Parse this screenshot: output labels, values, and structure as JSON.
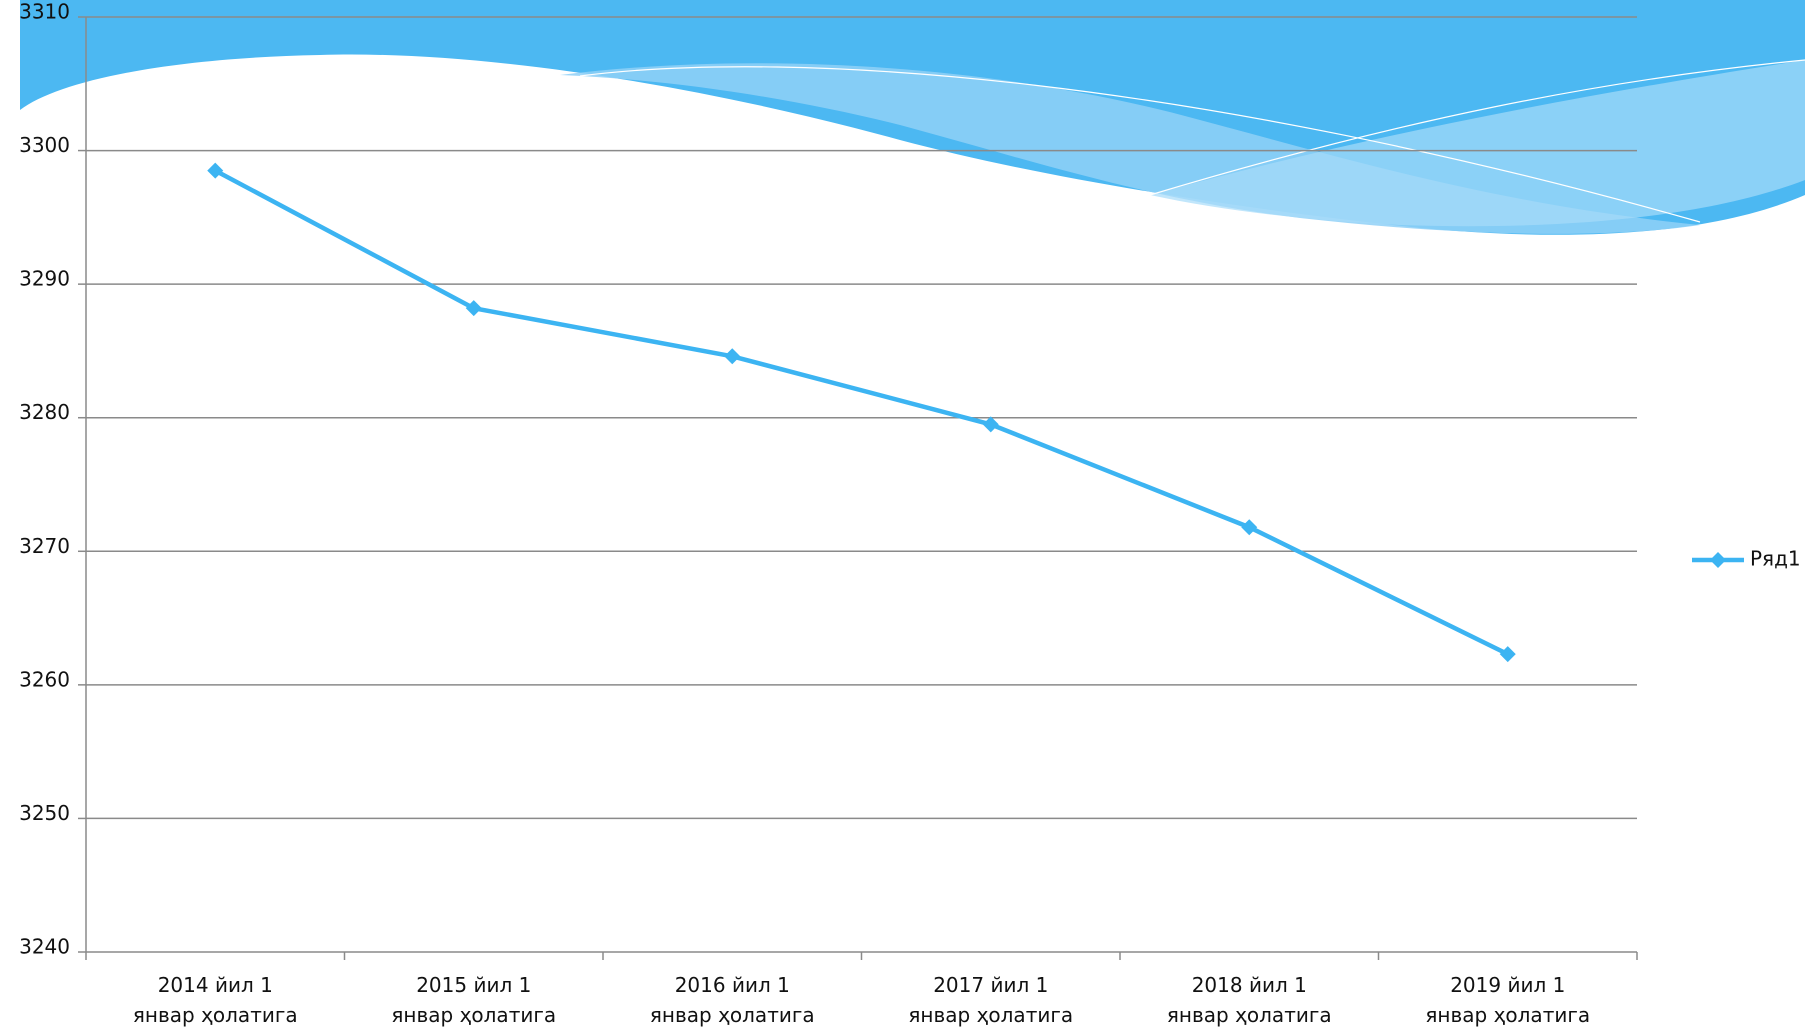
{
  "chart_data": {
    "type": "line",
    "categories": [
      "2014 йил 1 январ ҳолатига",
      "2015 йил 1 январ ҳолатига",
      "2016 йил 1 январ ҳолатига",
      "2017 йил 1 январ ҳолатига",
      "2018 йил 1 январ ҳолатига",
      "2019 йил 1 январ ҳолатига"
    ],
    "series": [
      {
        "name": "Ряд1",
        "color": "#3cb4f2",
        "values": [
          3298.5,
          3288.2,
          3284.6,
          3279.5,
          3271.8,
          3262.3
        ]
      }
    ],
    "ylim": [
      3240,
      3310
    ],
    "yticks": [
      3240,
      3250,
      3260,
      3270,
      3280,
      3290,
      3300,
      3310
    ],
    "grid": true,
    "legend": "right"
  }
}
